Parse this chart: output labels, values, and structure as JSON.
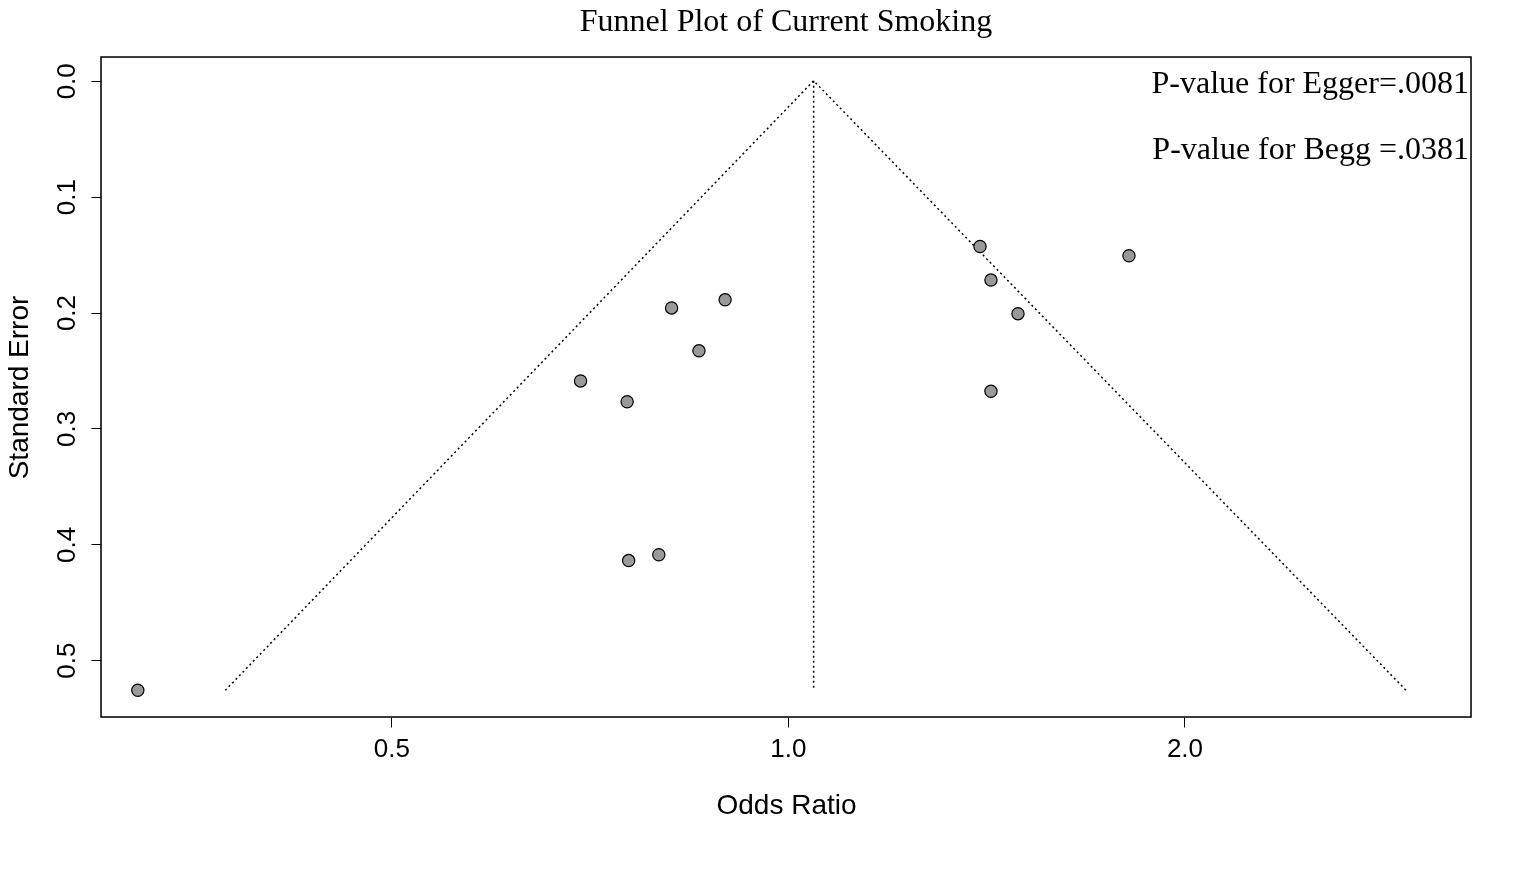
{
  "chart_data": {
    "type": "scatter",
    "title": "Funnel Plot of Current Smoking",
    "xlabel": "Odds Ratio",
    "ylabel": "Standard Error",
    "log": "x",
    "xlim": [
      0.301,
      3.3
    ],
    "ylim": [
      0.549,
      -0.0205
    ],
    "xticks": [
      {
        "value": 0.5,
        "label": "0.5"
      },
      {
        "value": 1,
        "label": "1.0"
      },
      {
        "value": 2,
        "label": "2.0"
      }
    ],
    "yticks": [
      {
        "value": 0,
        "label": "0.0"
      },
      {
        "value": 0.1,
        "label": "0.1"
      },
      {
        "value": 0.2,
        "label": "0.2"
      },
      {
        "value": 0.3,
        "label": "0.3"
      },
      {
        "value": 0.4,
        "label": "0.4"
      },
      {
        "value": 0.5,
        "label": "0.5"
      }
    ],
    "grid": false,
    "annotations": [
      "P-value for Egger=.0081",
      "P-value for Begg =.0381"
    ],
    "series": [
      {
        "type": "line",
        "line_style": "dotted",
        "color": "#000000",
        "x": [
          0.374,
          1.046,
          2.946
        ],
        "values": [
          0.526,
          0,
          0.526
        ]
      },
      {
        "type": "line",
        "line_style": "dotted",
        "color": "#000000",
        "x": [
          1.046,
          1.046
        ],
        "values": [
          0,
          0.526
        ]
      },
      {
        "marker": "circle",
        "color": "#999999",
        "x": [
          0.321,
          0.696,
          0.755,
          0.816,
          0.856,
          0.896,
          0.757,
          0.798,
          1.399,
          1.426,
          1.495,
          1.426,
          1.815
        ],
        "values": [
          0.526,
          0.259,
          0.277,
          0.196,
          0.233,
          0.189,
          0.414,
          0.409,
          0.143,
          0.172,
          0.201,
          0.268,
          0.151
        ]
      }
    ]
  }
}
